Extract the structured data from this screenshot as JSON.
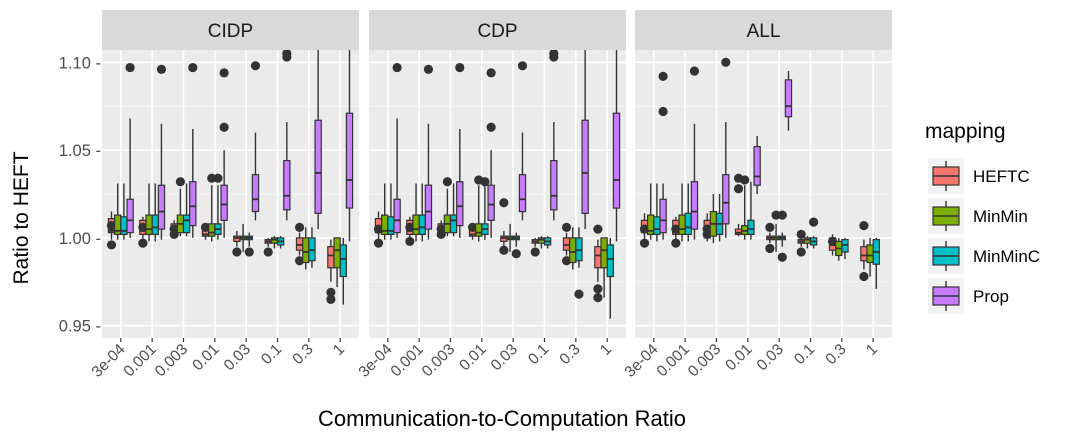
{
  "chart_data": {
    "type": "boxplot",
    "xlabel": "Communication-to-Computation Ratio",
    "ylabel": "Ratio to HEFT",
    "categories": [
      "3e-04",
      "0.001",
      "0.003",
      "0.01",
      "0.03",
      "0.1",
      "0.3",
      "1"
    ],
    "ylim": [
      0.943,
      1.107
    ],
    "yticks": [
      0.95,
      1.0,
      1.05,
      1.1
    ],
    "ytick_labels": [
      "0.95 -",
      "1.00 -",
      "1.05 -",
      "1.10 -"
    ],
    "grid": true,
    "legend": {
      "title": "mapping",
      "position": "right",
      "entries": [
        "HEFTC",
        "MinMin",
        "MinMinC",
        "Prop"
      ]
    },
    "colors": {
      "HEFTC": "#F8766D",
      "MinMin": "#7CAE00",
      "MinMinC": "#00BFC4",
      "Prop": "#C77CFF",
      "panel_bg": "#EBEBEB",
      "strip_bg": "#D9D9D9",
      "outlier": "#333333"
    },
    "series": [
      "HEFTC",
      "MinMin",
      "MinMinC",
      "Prop"
    ],
    "panels": [
      {
        "title": "CIDP",
        "boxes": [
          [
            [
              0.999,
              1.003,
              1.004,
              1.011,
              1.015,
              [
                0.996,
                1.007
              ]
            ],
            [
              0.999,
              1.002,
              1.004,
              1.013,
              1.031,
              []
            ],
            [
              0.999,
              1.002,
              1.004,
              1.012,
              1.031,
              []
            ],
            [
              1.0,
              1.003,
              1.01,
              1.022,
              1.068,
              [
                1.097
              ]
            ]
          ],
          [
            [
              0.998,
              1.002,
              1.004,
              1.01,
              1.012,
              [
                0.997,
                1.006
              ]
            ],
            [
              0.998,
              1.002,
              1.005,
              1.013,
              1.031,
              []
            ],
            [
              0.998,
              1.002,
              1.006,
              1.013,
              1.031,
              []
            ],
            [
              0.999,
              1.005,
              1.015,
              1.03,
              1.065,
              [
                1.096
              ]
            ]
          ],
          [
            [
              1.001,
              1.003,
              1.004,
              1.008,
              1.01,
              [
                1.002,
                1.005
              ]
            ],
            [
              1.001,
              1.003,
              1.008,
              1.013,
              1.028,
              [
                1.032
              ]
            ],
            [
              1.001,
              1.003,
              1.01,
              1.013,
              1.031,
              []
            ],
            [
              1.0,
              1.007,
              1.018,
              1.032,
              1.062,
              [
                1.097
              ]
            ]
          ],
          [
            [
              0.999,
              1.001,
              1.002,
              1.005,
              1.008,
              [
                1.006
              ]
            ],
            [
              0.998,
              1.001,
              1.003,
              1.008,
              1.03,
              [
                1.034
              ]
            ],
            [
              0.999,
              1.002,
              1.005,
              1.008,
              1.03,
              [
                1.034
              ]
            ],
            [
              1.0,
              1.01,
              1.019,
              1.03,
              1.05,
              [
                1.063,
                1.094
              ]
            ]
          ],
          [
            [
              0.995,
              0.998,
              1.0,
              1.001,
              1.004,
              [
                0.992
              ]
            ],
            [
              0.992,
              0.999,
              1.0,
              1.001,
              1.008,
              []
            ],
            [
              0.995,
              0.999,
              1.0,
              1.001,
              1.003,
              [
                0.992
              ]
            ],
            [
              1.01,
              1.015,
              1.022,
              1.036,
              1.06,
              [
                1.098
              ]
            ]
          ],
          [
            [
              0.995,
              0.997,
              0.998,
              0.999,
              1.0,
              [
                0.992
              ]
            ],
            [
              0.994,
              0.997,
              0.999,
              1.0,
              1.001,
              []
            ],
            [
              0.994,
              0.996,
              0.998,
              1.0,
              1.001,
              []
            ],
            [
              1.01,
              1.016,
              1.024,
              1.044,
              1.066,
              [
                1.103,
                1.105
              ]
            ]
          ],
          [
            [
              0.99,
              0.993,
              0.996,
              1.0,
              1.003,
              [
                0.987,
                1.006
              ]
            ],
            [
              0.982,
              0.986,
              0.992,
              1.0,
              1.006,
              []
            ],
            [
              0.983,
              0.987,
              0.993,
              1.0,
              1.006,
              []
            ],
            [
              1.005,
              1.014,
              1.037,
              1.067,
              1.107,
              []
            ]
          ],
          [
            [
              0.975,
              0.983,
              0.99,
              0.995,
              0.999,
              [
                0.965,
                0.969
              ]
            ],
            [
              0.972,
              0.983,
              0.993,
              1.0,
              1.0,
              []
            ],
            [
              0.962,
              0.978,
              0.988,
              0.996,
              1.0,
              []
            ],
            [
              0.998,
              1.017,
              1.033,
              1.071,
              1.107,
              []
            ]
          ]
        ]
      },
      {
        "title": "CDP",
        "boxes": [
          [
            [
              0.999,
              1.003,
              1.004,
              1.011,
              1.015,
              [
                0.997,
                1.005
              ]
            ],
            [
              0.999,
              1.002,
              1.004,
              1.013,
              1.031,
              []
            ],
            [
              0.999,
              1.002,
              1.004,
              1.012,
              1.031,
              []
            ],
            [
              1.0,
              1.003,
              1.01,
              1.022,
              1.068,
              [
                1.097
              ]
            ]
          ],
          [
            [
              0.998,
              1.002,
              1.004,
              1.01,
              1.012,
              [
                0.998,
                1.006
              ]
            ],
            [
              0.998,
              1.002,
              1.005,
              1.013,
              1.031,
              []
            ],
            [
              0.998,
              1.002,
              1.006,
              1.013,
              1.031,
              []
            ],
            [
              0.999,
              1.005,
              1.015,
              1.03,
              1.065,
              [
                1.096
              ]
            ]
          ],
          [
            [
              1.001,
              1.003,
              1.004,
              1.008,
              1.01,
              [
                1.002,
                1.005
              ]
            ],
            [
              1.001,
              1.003,
              1.008,
              1.013,
              1.028,
              [
                1.032
              ]
            ],
            [
              1.001,
              1.003,
              1.01,
              1.013,
              1.031,
              []
            ],
            [
              1.0,
              1.007,
              1.018,
              1.032,
              1.062,
              [
                1.097
              ]
            ]
          ],
          [
            [
              0.999,
              1.001,
              1.002,
              1.005,
              1.008,
              [
                1.006
              ]
            ],
            [
              0.998,
              1.001,
              1.003,
              1.008,
              1.03,
              [
                1.033
              ]
            ],
            [
              0.999,
              1.002,
              1.005,
              1.008,
              1.03,
              [
                1.032
              ]
            ],
            [
              1.0,
              1.01,
              1.019,
              1.03,
              1.05,
              [
                1.063,
                1.094
              ]
            ]
          ],
          [
            [
              0.995,
              0.998,
              1.0,
              1.001,
              1.004,
              [
                0.993,
                1.02
              ]
            ],
            [
              0.992,
              0.999,
              1.0,
              1.001,
              1.008,
              []
            ],
            [
              0.995,
              0.999,
              1.0,
              1.001,
              1.003,
              [
                0.991
              ]
            ],
            [
              1.01,
              1.015,
              1.022,
              1.036,
              1.06,
              [
                1.098
              ]
            ]
          ],
          [
            [
              0.995,
              0.997,
              0.998,
              0.999,
              1.0,
              [
                0.992
              ]
            ],
            [
              0.994,
              0.997,
              0.999,
              1.0,
              1.001,
              []
            ],
            [
              0.994,
              0.996,
              0.998,
              1.0,
              1.001,
              []
            ],
            [
              1.01,
              1.016,
              1.024,
              1.044,
              1.066,
              [
                1.103,
                1.105
              ]
            ]
          ],
          [
            [
              0.99,
              0.993,
              0.996,
              1.0,
              1.003,
              [
                0.987,
                1.006
              ]
            ],
            [
              0.982,
              0.986,
              0.992,
              1.0,
              1.006,
              []
            ],
            [
              0.983,
              0.987,
              0.993,
              1.0,
              1.006,
              [
                0.968
              ]
            ],
            [
              1.005,
              1.014,
              1.037,
              1.067,
              1.107,
              []
            ]
          ],
          [
            [
              0.975,
              0.983,
              0.99,
              0.995,
              0.999,
              [
                0.966,
                0.971,
                1.005
              ]
            ],
            [
              0.966,
              0.983,
              0.993,
              1.0,
              1.0,
              []
            ],
            [
              0.954,
              0.978,
              0.988,
              0.996,
              1.0,
              []
            ],
            [
              0.998,
              1.017,
              1.033,
              1.071,
              1.107,
              []
            ]
          ]
        ]
      },
      {
        "title": "ALL",
        "boxes": [
          [
            [
              0.999,
              1.003,
              1.004,
              1.01,
              1.014,
              [
                0.997,
                1.005
              ]
            ],
            [
              0.999,
              1.002,
              1.004,
              1.013,
              1.031,
              []
            ],
            [
              0.998,
              1.002,
              1.005,
              1.012,
              1.031,
              []
            ],
            [
              0.999,
              1.003,
              1.01,
              1.022,
              1.031,
              [
                1.072,
                1.092
              ]
            ]
          ],
          [
            [
              0.998,
              1.002,
              1.004,
              1.01,
              1.012,
              [
                0.997,
                1.005
              ]
            ],
            [
              0.998,
              1.002,
              1.005,
              1.013,
              1.031,
              []
            ],
            [
              0.998,
              1.002,
              1.006,
              1.014,
              1.031,
              []
            ],
            [
              0.999,
              1.005,
              1.015,
              1.032,
              1.065,
              [
                1.095
              ]
            ]
          ],
          [
            [
              0.998,
              1.0,
              1.004,
              1.01,
              1.014,
              [
                1.002,
                1.005
              ]
            ],
            [
              0.997,
              1.001,
              1.008,
              1.015,
              1.025,
              []
            ],
            [
              0.998,
              1.002,
              1.008,
              1.014,
              1.025,
              []
            ],
            [
              1.0,
              1.008,
              1.02,
              1.036,
              1.066,
              [
                1.1
              ]
            ]
          ],
          [
            [
              1.001,
              1.002,
              1.003,
              1.005,
              1.008,
              [
                1.028,
                1.034
              ]
            ],
            [
              0.999,
              1.002,
              1.004,
              1.007,
              1.03,
              [
                1.033
              ]
            ],
            [
              0.999,
              1.002,
              1.005,
              1.01,
              1.032,
              []
            ],
            [
              1.025,
              1.03,
              1.035,
              1.052,
              1.058,
              []
            ]
          ],
          [
            [
              0.997,
              0.999,
              1.0,
              1.001,
              1.003,
              [
                0.994,
                1.006
              ]
            ],
            [
              0.992,
              0.999,
              1.0,
              1.001,
              1.008,
              [
                1.013
              ]
            ],
            [
              0.995,
              0.999,
              1.0,
              1.001,
              1.003,
              [
                0.989,
                1.013
              ]
            ],
            [
              1.061,
              1.069,
              1.075,
              1.09,
              1.095,
              []
            ]
          ],
          [
            [
              0.995,
              0.997,
              0.998,
              0.999,
              1.0,
              [
                0.992,
                1.002
              ]
            ],
            [
              0.994,
              0.997,
              0.999,
              1.0,
              1.001,
              []
            ],
            [
              0.994,
              0.996,
              0.998,
              1.0,
              1.001,
              [
                1.009
              ]
            ],
            []
          ],
          [
            [
              0.99,
              0.993,
              0.996,
              1.0,
              1.002,
              [
                0.998
              ]
            ],
            [
              0.987,
              0.99,
              0.994,
              0.998,
              1.0,
              []
            ],
            [
              0.988,
              0.992,
              0.996,
              0.999,
              1.0,
              []
            ],
            []
          ],
          [
            [
              0.982,
              0.987,
              0.99,
              0.995,
              0.999,
              [
                0.978,
                1.007
              ]
            ],
            [
              0.978,
              0.986,
              0.99,
              0.996,
              1.0,
              []
            ],
            [
              0.971,
              0.985,
              0.992,
              0.999,
              1.0,
              []
            ],
            []
          ]
        ]
      }
    ]
  }
}
